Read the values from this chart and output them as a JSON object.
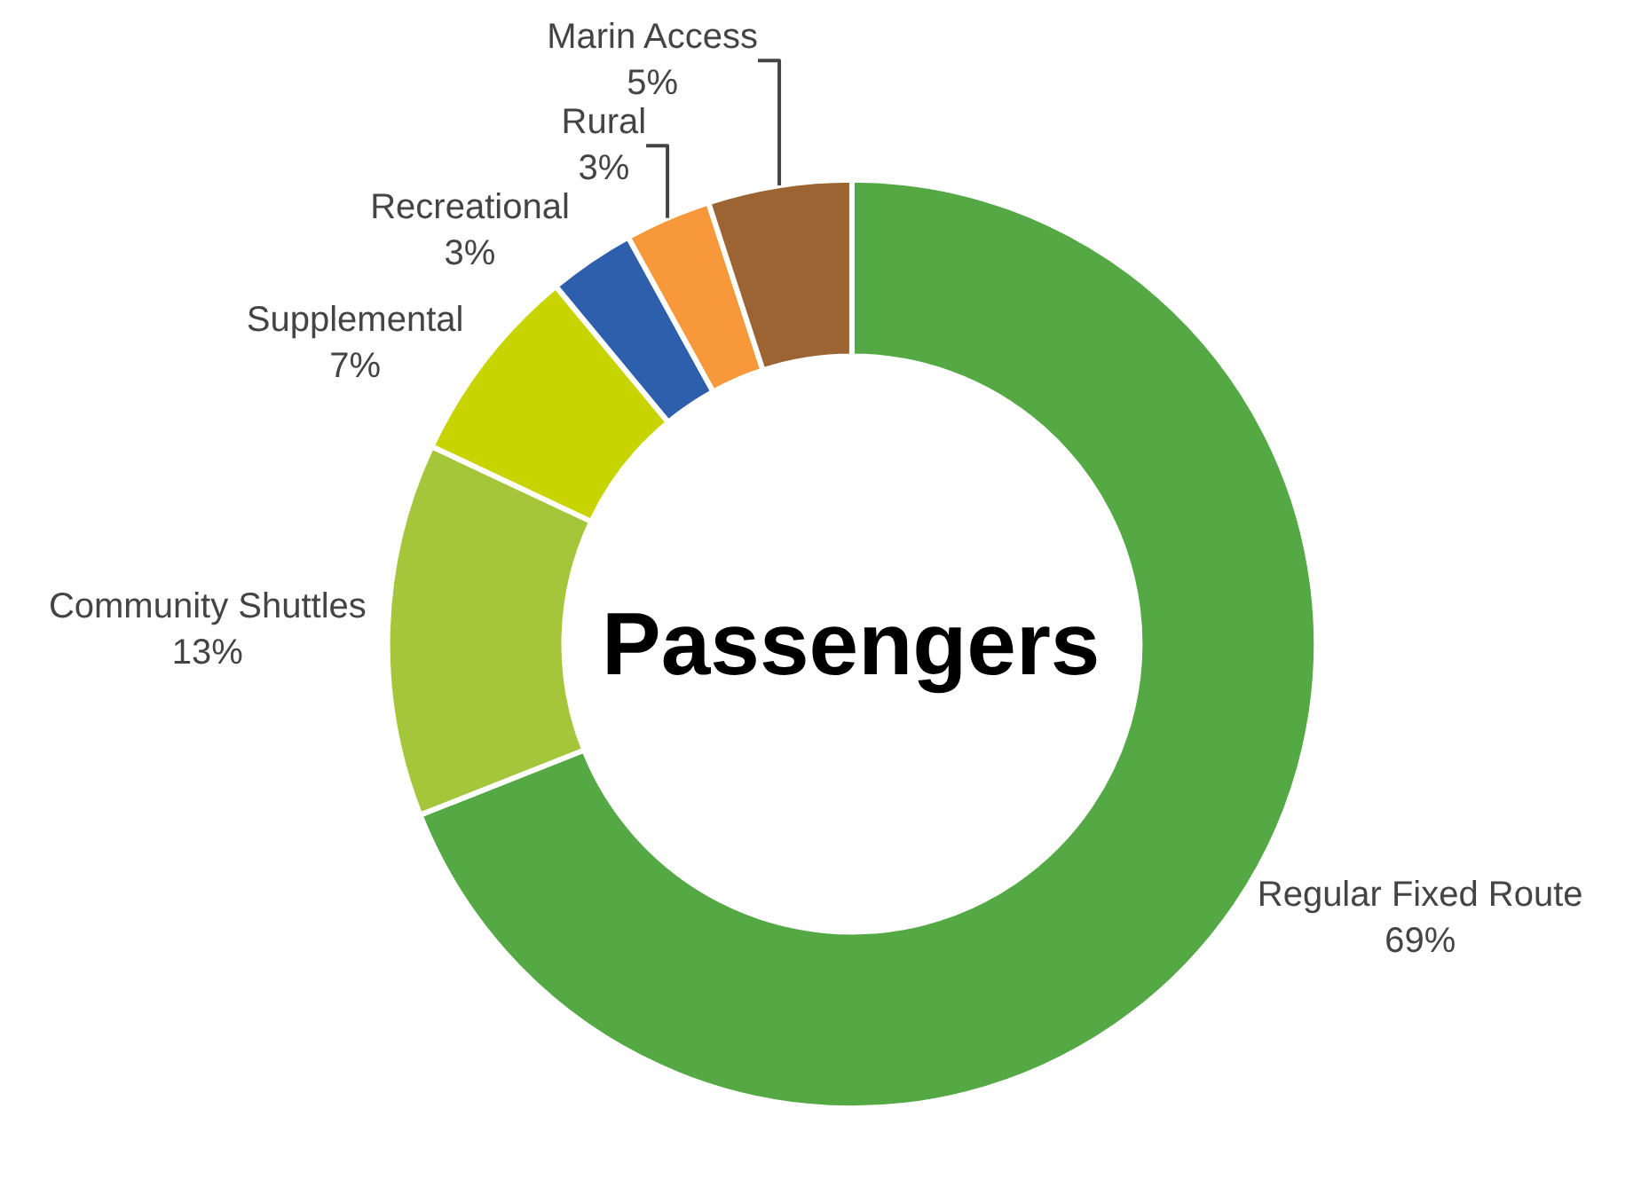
{
  "chart_data": {
    "type": "donut",
    "title": "Passengers",
    "categories": [
      "Regular Fixed Route",
      "Community Shuttles",
      "Supplemental",
      "Recreational",
      "Rural",
      "Marin Access"
    ],
    "values": [
      69,
      13,
      7,
      3,
      3,
      5
    ],
    "value_labels": [
      "69%",
      "13%",
      "7%",
      "3%",
      "3%",
      "5%"
    ],
    "colors": [
      "#54a945",
      "#a5c63b",
      "#c8d400",
      "#2e5fac",
      "#f7993b",
      "#9b6432"
    ],
    "legend": false
  }
}
